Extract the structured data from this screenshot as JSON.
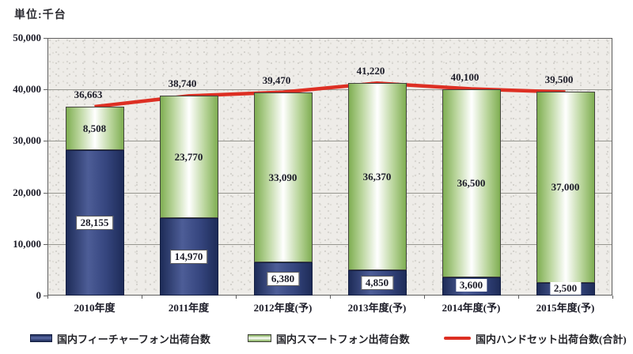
{
  "unit_label": "単位:千台",
  "chart_data": {
    "type": "bar",
    "stacked": true,
    "title": "",
    "unit": "単位:千台",
    "categories": [
      "2010年度",
      "2011年度",
      "2012年度(予)",
      "2013年度(予)",
      "2014年度(予)",
      "2015年度(予)"
    ],
    "series": [
      {
        "name": "国内フィーチャーフォン出荷台数",
        "type": "bar",
        "color_role": "blue",
        "values": [
          28155,
          14970,
          6380,
          4850,
          3600,
          2500
        ],
        "labels": [
          "28,155",
          "14,970",
          "6,380",
          "4,850",
          "3,600",
          "2,500"
        ]
      },
      {
        "name": "国内スマートフォン出荷台数",
        "type": "bar",
        "color_role": "green",
        "values": [
          8508,
          23770,
          33090,
          36370,
          36500,
          37000
        ],
        "labels": [
          "8,508",
          "23,770",
          "33,090",
          "36,370",
          "36,500",
          "37,000"
        ]
      },
      {
        "name": "国内ハンドセット出荷台数(合計)",
        "type": "line",
        "color": "#dd2f23",
        "values": [
          36663,
          38740,
          39470,
          41220,
          40100,
          39500
        ],
        "labels": [
          "36,663",
          "38,740",
          "39,470",
          "41,220",
          "40,100",
          "39,500"
        ]
      }
    ],
    "ylim": [
      0,
      50000
    ],
    "ytick_interval": 10000,
    "yticks": [
      "50,000",
      "40,000",
      "30,000",
      "20,000",
      "10,000",
      "0"
    ],
    "grid": true,
    "legend_position": "bottom"
  },
  "colors": {
    "bar_blue_dark": "#1e2c58",
    "bar_blue_light": "#4d5d97",
    "bar_green_edge": "#7fae52",
    "bar_green_center": "#ffffff",
    "total_line": "#dd2f23",
    "gridline": "#979790",
    "plot_border": "#606060",
    "plot_background": "#eeece8",
    "text": "#1c1c28"
  }
}
